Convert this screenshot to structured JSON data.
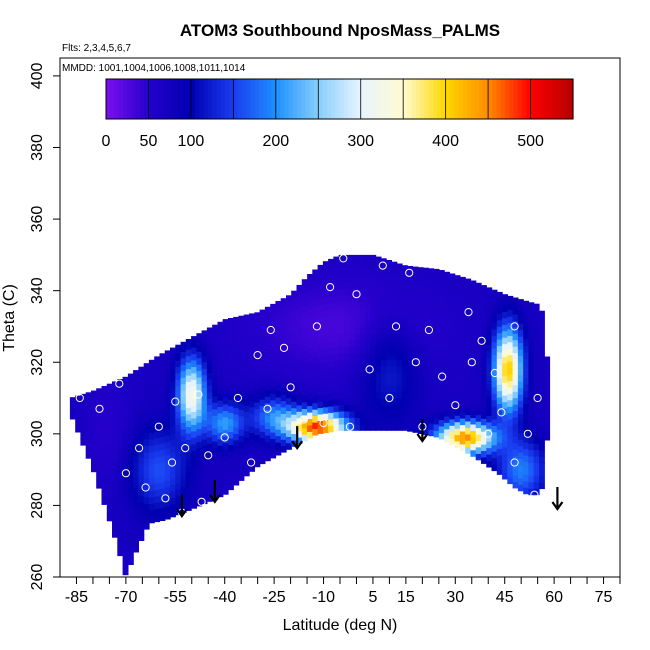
{
  "chart_data": {
    "type": "heatmap",
    "title": "ATOM3 Southbound NposMass_PALMS",
    "subtitle_flights": "Flts: 2,3,4,5,6,7",
    "subtitle_dates": "MMDD: 1001,1004,1006,1008,1011,1014",
    "xlabel": "Latitude (deg N)",
    "ylabel": "Theta (C)",
    "xlim": [
      -90,
      80
    ],
    "ylim": [
      260,
      405
    ],
    "x_ticks": [
      -85,
      -70,
      -55,
      -40,
      -25,
      -10,
      5,
      15,
      30,
      45,
      60,
      75
    ],
    "y_ticks": [
      260,
      280,
      300,
      320,
      340,
      360,
      380,
      400
    ],
    "colorbar": {
      "range": [
        0,
        550
      ],
      "ticks": [
        0,
        50,
        100,
        200,
        300,
        400,
        500
      ],
      "colors": [
        "#7a10f0",
        "#2600cc",
        "#0000b0",
        "#1a3cf0",
        "#1e90ff",
        "#87cefa",
        "#e8f4ff",
        "#fffbd0",
        "#ffd700",
        "#ff8c00",
        "#ff0000",
        "#b40000"
      ]
    },
    "arrows_lat": [
      -53,
      -43,
      -18,
      20,
      61
    ],
    "arrows_theta": [
      277,
      281,
      296,
      298,
      279
    ]
  }
}
